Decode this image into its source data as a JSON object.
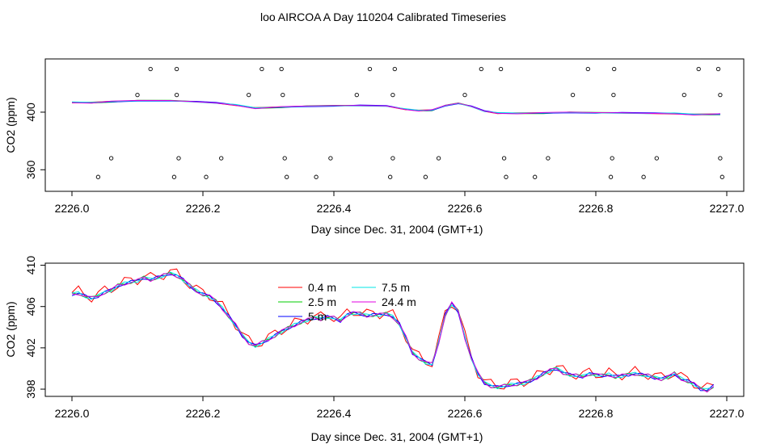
{
  "figure_title": "loo AIRCOA A  Day 110204  Calibrated Timeseries",
  "chart_data": [
    {
      "type": "scatter",
      "title": "",
      "xlabel": "Day since Dec. 31, 2004 (GMT+1)",
      "ylabel": "CO2 (ppm)",
      "xlim": [
        2226.0,
        2227.0
      ],
      "ylim": [
        345,
        437
      ],
      "xticks": [
        "2226.0",
        "2226.2",
        "2226.4",
        "2226.6",
        "2226.8",
        "2227.0"
      ],
      "yticks": [
        "360",
        "400"
      ],
      "grid": false,
      "smoothed_curve": {
        "x": [
          2226.0,
          2226.03,
          2226.06,
          2226.1,
          2226.15,
          2226.19,
          2226.22,
          2226.25,
          2226.28,
          2226.32,
          2226.36,
          2226.4,
          2226.44,
          2226.48,
          2226.51,
          2226.53,
          2226.55,
          2226.57,
          2226.59,
          2226.61,
          2226.63,
          2226.65,
          2226.68,
          2226.72,
          2226.76,
          2226.8,
          2226.84,
          2226.88,
          2226.92,
          2226.95,
          2226.99
        ],
        "y": [
          406.8,
          406.6,
          407.3,
          407.9,
          408.0,
          407.2,
          406.5,
          405.0,
          402.8,
          403.5,
          404.1,
          404.5,
          404.6,
          404.4,
          402.0,
          401.1,
          401.4,
          404.5,
          406.2,
          404.0,
          400.8,
          399.4,
          399.2,
          399.4,
          399.8,
          399.6,
          399.5,
          399.3,
          399.1,
          398.4,
          398.6
        ]
      },
      "points": {
        "x": [
          2226.04,
          2226.06,
          2226.1,
          2226.12,
          2226.156,
          2226.16,
          2226.16,
          2226.163,
          2226.205,
          2226.228,
          2226.27,
          2226.29,
          2226.32,
          2226.322,
          2226.325,
          2226.328,
          2226.373,
          2226.395,
          2226.435,
          2226.455,
          2226.486,
          2226.49,
          2226.49,
          2226.493,
          2226.54,
          2226.56,
          2226.6,
          2226.625,
          2226.655,
          2226.66,
          2226.663,
          2226.707,
          2226.727,
          2226.765,
          2226.788,
          2226.823,
          2226.825,
          2226.827,
          2226.828,
          2226.873,
          2226.893,
          2226.935,
          2226.957,
          2226.987,
          2226.99,
          2226.99,
          2226.993
        ],
        "y": [
          355,
          368,
          412,
          430,
          355,
          430,
          412,
          368,
          355,
          368,
          412,
          430,
          430,
          412,
          368,
          355,
          355,
          368,
          412,
          430,
          355,
          368,
          412,
          430,
          355,
          368,
          412,
          430,
          430,
          368,
          355,
          355,
          368,
          412,
          430,
          355,
          368,
          412,
          430,
          355,
          368,
          412,
          430,
          430,
          412,
          368,
          355
        ]
      },
      "series": [
        {
          "name": "0.4 m",
          "color": "#ff0000"
        },
        {
          "name": "2.5 m",
          "color": "#00cc00"
        },
        {
          "name": "5 m",
          "color": "#0000ff"
        },
        {
          "name": "7.5 m",
          "color": "#00e5e5"
        },
        {
          "name": "24.4 m",
          "color": "#e000e0"
        }
      ]
    },
    {
      "type": "line",
      "title": "",
      "xlabel": "Day since Dec. 31, 2004 (GMT+1)",
      "ylabel": "CO2 (ppm)",
      "xlim": [
        2226.0,
        2227.0
      ],
      "ylim": [
        397.3,
        410.2
      ],
      "xticks": [
        "2226.0",
        "2226.2",
        "2226.4",
        "2226.6",
        "2226.8",
        "2227.0"
      ],
      "yticks": [
        "398",
        "402",
        "406",
        "410"
      ],
      "grid": false,
      "legend_position": "top-center",
      "base": {
        "x": [
          2226.0,
          2226.01,
          2226.02,
          2226.03,
          2226.04,
          2226.05,
          2226.06,
          2226.07,
          2226.08,
          2226.09,
          2226.1,
          2226.11,
          2226.12,
          2226.13,
          2226.14,
          2226.15,
          2226.16,
          2226.17,
          2226.18,
          2226.19,
          2226.2,
          2226.21,
          2226.22,
          2226.23,
          2226.24,
          2226.25,
          2226.26,
          2226.27,
          2226.28,
          2226.29,
          2226.3,
          2226.31,
          2226.32,
          2226.33,
          2226.34,
          2226.35,
          2226.36,
          2226.37,
          2226.38,
          2226.39,
          2226.4,
          2226.41,
          2226.42,
          2226.43,
          2226.44,
          2226.45,
          2226.46,
          2226.47,
          2226.48,
          2226.49,
          2226.5,
          2226.51,
          2226.52,
          2226.53,
          2226.54,
          2226.55,
          2226.56,
          2226.57,
          2226.58,
          2226.59,
          2226.6,
          2226.61,
          2226.62,
          2226.63,
          2226.64,
          2226.65,
          2226.66,
          2226.67,
          2226.68,
          2226.69,
          2226.7,
          2226.71,
          2226.72,
          2226.73,
          2226.74,
          2226.75,
          2226.76,
          2226.77,
          2226.78,
          2226.79,
          2226.8,
          2226.81,
          2226.82,
          2226.83,
          2226.84,
          2226.85,
          2226.86,
          2226.87,
          2226.88,
          2226.89,
          2226.9,
          2226.91,
          2226.92,
          2226.93,
          2226.94,
          2226.95,
          2226.96,
          2226.97,
          2226.98
        ],
        "y": [
          407.2,
          407.3,
          407.0,
          406.8,
          407.0,
          407.4,
          407.6,
          408.0,
          408.2,
          408.4,
          408.5,
          408.8,
          408.6,
          408.8,
          409.0,
          409.2,
          409.0,
          408.6,
          408.0,
          407.5,
          407.2,
          407.0,
          406.5,
          405.8,
          405.0,
          404.2,
          403.2,
          402.5,
          402.2,
          402.5,
          402.8,
          403.2,
          403.6,
          403.9,
          404.2,
          404.5,
          404.7,
          404.9,
          404.8,
          405.0,
          404.9,
          404.6,
          405.2,
          405.4,
          405.3,
          405.1,
          405.2,
          405.2,
          405.3,
          405.0,
          404.3,
          403.0,
          401.5,
          401.0,
          400.6,
          400.4,
          402.5,
          405.2,
          406.3,
          405.5,
          403.0,
          401.0,
          399.5,
          398.6,
          398.3,
          398.2,
          398.3,
          398.4,
          398.5,
          398.6,
          398.8,
          399.1,
          399.5,
          399.8,
          400.0,
          399.6,
          399.4,
          399.3,
          399.2,
          399.5,
          399.4,
          399.3,
          399.4,
          399.2,
          399.3,
          399.4,
          399.5,
          399.4,
          399.3,
          399.1,
          399.0,
          399.2,
          399.5,
          399.0,
          398.8,
          398.5,
          398.0,
          397.9,
          398.3
        ]
      },
      "series": [
        {
          "name": "0.4 m",
          "color": "#ff0000",
          "noise_amp": 0.55
        },
        {
          "name": "2.5 m",
          "color": "#00cc00",
          "noise_amp": 0.3
        },
        {
          "name": "5 m",
          "color": "#0000ff",
          "noise_amp": 0.25
        },
        {
          "name": "7.5 m",
          "color": "#00e5e5",
          "noise_amp": 0.3
        },
        {
          "name": "24.4 m",
          "color": "#e000e0",
          "noise_amp": 0.3
        }
      ]
    }
  ]
}
